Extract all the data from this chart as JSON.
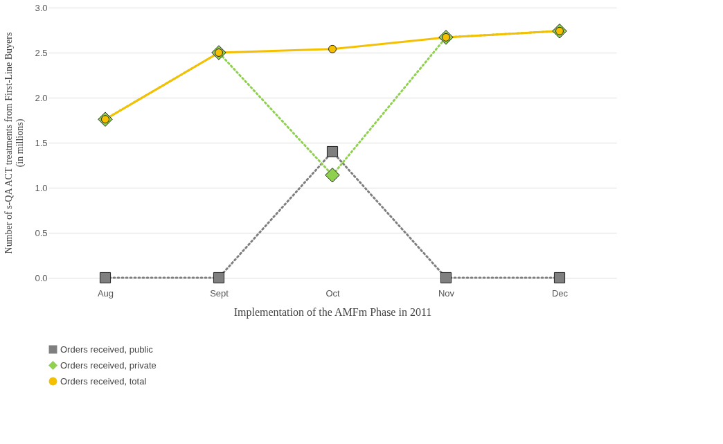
{
  "chart_data": {
    "type": "line",
    "xlabel": "Implementation of the AMFm Phase in 2011",
    "ylabel": [
      "Number of s-QA ACT treatments from First-Line Buyers",
      "(in millions)"
    ],
    "categories": [
      "Aug",
      "Sept",
      "Oct",
      "Nov",
      "Dec"
    ],
    "series": [
      {
        "name": "Orders received, public",
        "color": "#7f7f7f",
        "marker": "square",
        "line_style": "dotted",
        "values": [
          0,
          0,
          1.4,
          0,
          0
        ]
      },
      {
        "name": "Orders received, private",
        "color": "#8fd14f",
        "marker": "diamond",
        "line_style": "dotted",
        "values": [
          1.76,
          2.5,
          1.14,
          2.67,
          2.74
        ]
      },
      {
        "name": "Orders received, total",
        "color": "#f5c000",
        "marker": "circle",
        "line_style": "solid",
        "values": [
          1.76,
          2.5,
          2.54,
          2.67,
          2.74
        ]
      }
    ],
    "ylim": [
      0,
      3
    ],
    "yticks": [
      {
        "value": 0,
        "label": "0.0"
      },
      {
        "value": 0.5,
        "label": "0.5"
      },
      {
        "value": 1,
        "label": "1.0"
      },
      {
        "value": 1.5,
        "label": "1.5"
      },
      {
        "value": 2,
        "label": "2.0"
      },
      {
        "value": 2.5,
        "label": "2.5"
      },
      {
        "value": 3,
        "label": "3.0"
      }
    ],
    "grid": "y",
    "legend": "bottom left"
  }
}
